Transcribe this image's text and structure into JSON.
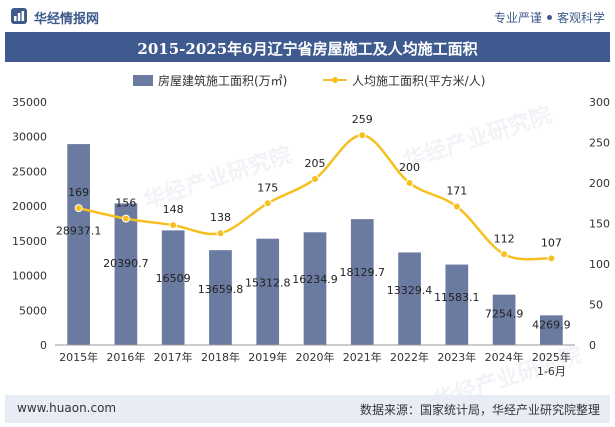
{
  "header": {
    "brand": "华经情报网",
    "slogan_left": "专业严谨",
    "slogan_right": "客观科学"
  },
  "footer": {
    "url": "www.huaon.com",
    "source": "数据来源：国家统计局，华经产业研究院整理"
  },
  "watermark": "华经产业研究院",
  "colors": {
    "bar": "#6b7aa1",
    "line": "#f5c020",
    "title_bg": "#3f5a8f",
    "footer_bg": "#e8edf5"
  },
  "chart_data": {
    "type": "bar",
    "title": "2015-2025年6月辽宁省房屋施工及人均施工面积",
    "categories": [
      "2015年",
      "2016年",
      "2017年",
      "2018年",
      "2019年",
      "2020年",
      "2021年",
      "2022年",
      "2023年",
      "2024年",
      "2025年\n1-6月"
    ],
    "series": [
      {
        "name": "房屋建筑施工面积(万㎡)",
        "type": "bar",
        "axis": "left",
        "values": [
          28937.1,
          20390.7,
          16509,
          13659.8,
          15312.8,
          16234.9,
          18129.7,
          13329.4,
          11583.1,
          7254.9,
          4269.9
        ],
        "labels": [
          "28937.1",
          "20390.7",
          "16509",
          "13659.8",
          "15312.8",
          "16234.9",
          "18129.7",
          "13329.4",
          "11583.1",
          "7254.9",
          "4269.9"
        ]
      },
      {
        "name": "人均施工面积(平方米/人)",
        "type": "line",
        "axis": "right",
        "values": [
          169,
          156,
          148,
          138,
          175,
          205,
          259,
          200,
          171,
          112,
          107
        ],
        "labels": [
          "169",
          "156",
          "148",
          "138",
          "175",
          "205",
          "259",
          "200",
          "171",
          "112",
          "107"
        ]
      }
    ],
    "left_axis": {
      "min": 0,
      "max": 35000,
      "ticks": [
        "0",
        "5000",
        "10000",
        "15000",
        "20000",
        "25000",
        "30000",
        "35000"
      ]
    },
    "right_axis": {
      "min": 0,
      "max": 300,
      "ticks": [
        "0",
        "50",
        "100",
        "150",
        "200",
        "250",
        "300"
      ]
    },
    "legend_position": "top-center",
    "grid": false
  }
}
